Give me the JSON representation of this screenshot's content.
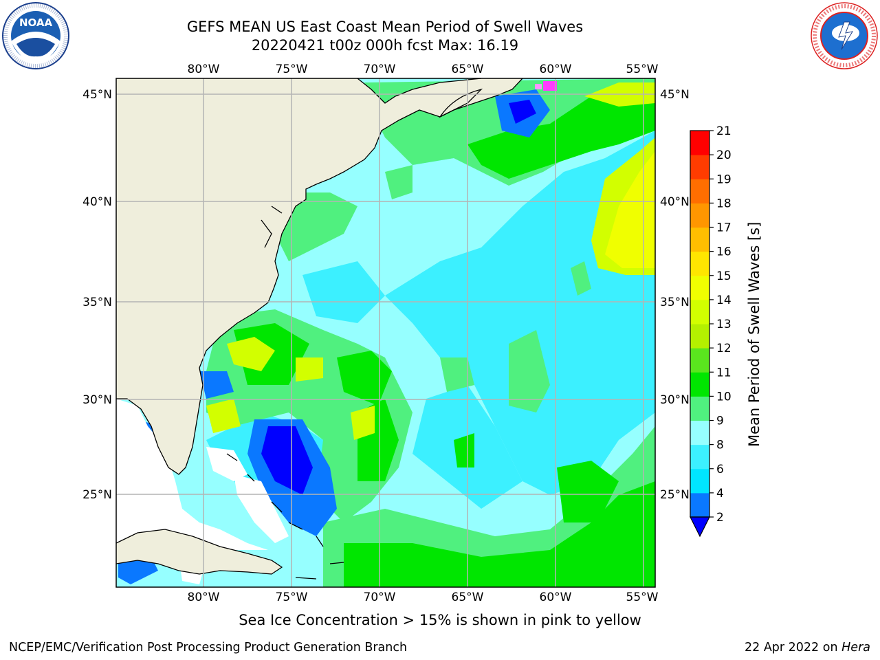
{
  "header": {
    "title_line1": "GEFS MEAN US East Coast Mean Period of Swell Waves",
    "title_line2": "20220421 t00z 000h fcst   Max: 16.19"
  },
  "logos": {
    "left": {
      "name": "noaa-logo",
      "text": "NOAA",
      "ring_text": "NATIONAL OCEANIC AND ATMOSPHERIC ADMINISTRATION · U.S. DEPARTMENT OF COMMERCE"
    },
    "right": {
      "name": "nws-logo",
      "ring_text": "NATIONAL WEATHER SERVICE"
    }
  },
  "map": {
    "lon_labels": [
      "80°W",
      "75°W",
      "70°W",
      "65°W",
      "60°W",
      "55°W"
    ],
    "lat_labels": [
      "45°N",
      "40°N",
      "35°N",
      "30°N",
      "25°N"
    ],
    "lon_range": [
      -85,
      -54.5
    ],
    "lat_range": [
      20.5,
      46
    ],
    "grid": true,
    "colors": {
      "land": "#efeedc",
      "no_data": "#ffffff",
      "coast": "#000000",
      "grid": "#b4b4b4"
    }
  },
  "colorbar": {
    "label": "Mean Period of Swell Waves [s]",
    "ticks": [
      "2",
      "4",
      "6",
      "8",
      "9",
      "10",
      "11",
      "12",
      "13",
      "14",
      "15",
      "16",
      "17",
      "18",
      "19",
      "20",
      "21"
    ],
    "colors": [
      "#0a78ff",
      "#00e6ff",
      "#3cf0ff",
      "#96ffff",
      "#50f07f",
      "#00e600",
      "#5ae61e",
      "#b4f000",
      "#d2ff00",
      "#f0ff00",
      "#ffe600",
      "#ffbe00",
      "#ff9600",
      "#ff6e00",
      "#ff3c00",
      "#ff0000"
    ],
    "under_color": "#0000ff"
  },
  "caption": "Sea Ice Concentration > 15% is shown in pink to yellow",
  "footer": {
    "left": "NCEP/EMC/Verification Post Processing Product Generation Branch",
    "right_date": "22 Apr 2022 on",
    "right_machine": "Hera"
  }
}
